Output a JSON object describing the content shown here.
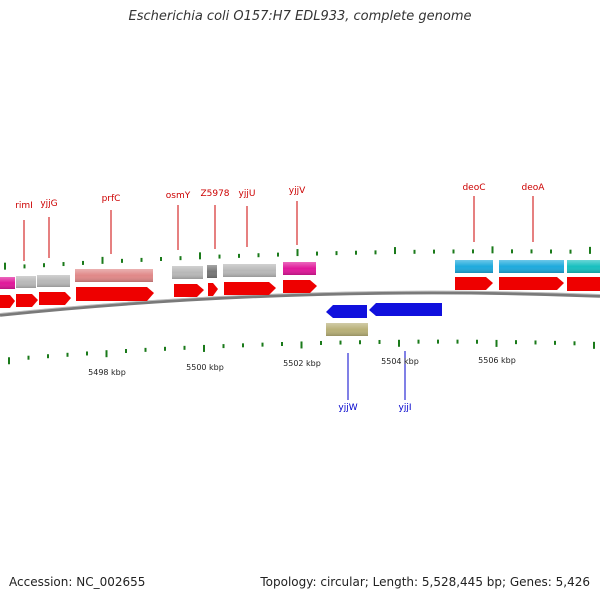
{
  "title": "Escherichia coli O157:H7 EDL933, complete genome",
  "footer": {
    "accession": "Accession: NC_002655",
    "summary": "Topology: circular; Length: 5,528,445 bp; Genes: 5,426"
  },
  "colors": {
    "forward_cds": "#ee0000",
    "reverse_cds": "#1010dd",
    "gray_gene": "#b8b8b8",
    "dark_gray_gene": "#777777",
    "salmon_gene": "#e08888",
    "magenta_gene": "#e0189a",
    "cyan_gene": "#1eaadd",
    "teal_gene": "#18c0c0",
    "olive_gene": "#b8b078",
    "tick": "#1a7a1a",
    "backbone": "#888888",
    "forward_label": "#cc0000",
    "reverse_label": "#0000cc"
  },
  "forward_genes": [
    "rimI",
    "yjjG",
    "prfC",
    "osmY",
    "Z5978",
    "yjjU",
    "yjjV",
    "deoC",
    "deoA"
  ],
  "reverse_genes": [
    "yjjW",
    "yjjI"
  ],
  "kbp_labels": [
    "5498 kbp",
    "5500 kbp",
    "5502 kbp",
    "5504 kbp",
    "5506 kbp"
  ]
}
